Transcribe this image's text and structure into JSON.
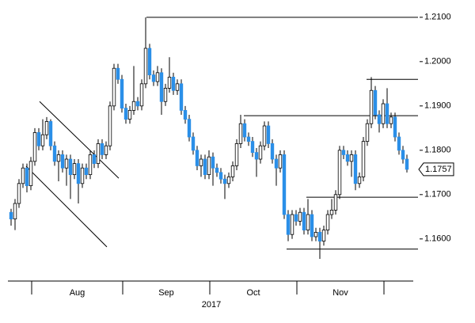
{
  "chart_data": {
    "type": "candlestick",
    "open": [
      1.166,
      1.1645,
      1.168,
      1.1725,
      1.176,
      1.172,
      1.1775,
      1.184,
      1.181,
      1.1835,
      1.1865,
      1.181,
      1.1775,
      1.179,
      1.176,
      1.178,
      1.1745,
      1.177,
      1.1725,
      1.176,
      1.1745,
      1.179,
      1.177,
      1.1815,
      1.179,
      1.181,
      1.19,
      1.1985,
      1.196,
      1.1895,
      1.187,
      1.189,
      1.191,
      1.19,
      1.195,
      1.203,
      1.197,
      1.1955,
      1.1975,
      1.191,
      1.194,
      1.1965,
      1.1935,
      1.195,
      1.189,
      1.187,
      1.183,
      1.18,
      1.1765,
      1.178,
      1.1745,
      1.1785,
      1.176,
      1.175,
      1.1735,
      1.1725,
      1.174,
      1.1765,
      1.1815,
      1.186,
      1.183,
      1.182,
      1.1795,
      1.178,
      1.181,
      1.1855,
      1.1815,
      1.178,
      1.176,
      1.179,
      1.1655,
      1.161,
      1.1655,
      1.164,
      1.166,
      1.162,
      1.1655,
      1.1605,
      1.1615,
      1.1595,
      1.162,
      1.1655,
      1.1665,
      1.17,
      1.18,
      1.179,
      1.1775,
      1.179,
      1.1725,
      1.174,
      1.182,
      1.186,
      1.1935,
      1.188,
      1.186,
      1.1905,
      1.186,
      1.1875,
      1.183,
      1.18,
      1.178
    ],
    "high": [
      1.1668,
      1.169,
      1.1735,
      1.177,
      1.177,
      1.1785,
      1.185,
      1.185,
      1.187,
      1.1875,
      1.187,
      1.182,
      1.18,
      1.18,
      1.179,
      1.179,
      1.178,
      1.178,
      1.177,
      1.177,
      1.18,
      1.18,
      1.1825,
      1.1825,
      1.182,
      1.191,
      1.1995,
      1.1995,
      1.197,
      1.1905,
      1.19,
      1.199,
      1.192,
      1.196,
      1.21,
      1.204,
      1.198,
      1.199,
      1.1985,
      1.195,
      1.201,
      1.1975,
      1.196,
      1.196,
      1.19,
      1.188,
      1.184,
      1.181,
      1.179,
      1.179,
      1.18,
      1.1795,
      1.177,
      1.176,
      1.1745,
      1.175,
      1.1775,
      1.1825,
      1.188,
      1.187,
      1.184,
      1.183,
      1.1805,
      1.182,
      1.1865,
      1.1865,
      1.1825,
      1.179,
      1.18,
      1.18,
      1.1665,
      1.1665,
      1.1665,
      1.167,
      1.167,
      1.169,
      1.1665,
      1.1625,
      1.1625,
      1.163,
      1.1665,
      1.169,
      1.171,
      1.181,
      1.181,
      1.18,
      1.18,
      1.18,
      1.175,
      1.183,
      1.187,
      1.1965,
      1.1945,
      1.189,
      1.1915,
      1.194,
      1.1885,
      1.1885,
      1.184,
      1.181,
      1.179
    ],
    "low": [
      1.163,
      1.162,
      1.167,
      1.1715,
      1.1705,
      1.171,
      1.1765,
      1.18,
      1.18,
      1.1825,
      1.18,
      1.1765,
      1.173,
      1.175,
      1.172,
      1.169,
      1.1735,
      1.168,
      1.1715,
      1.1735,
      1.1735,
      1.176,
      1.176,
      1.178,
      1.178,
      1.18,
      1.189,
      1.195,
      1.1885,
      1.186,
      1.186,
      1.188,
      1.189,
      1.189,
      1.194,
      1.196,
      1.1945,
      1.1945,
      1.188,
      1.19,
      1.193,
      1.1925,
      1.1925,
      1.188,
      1.186,
      1.182,
      1.179,
      1.1755,
      1.174,
      1.1735,
      1.1735,
      1.172,
      1.174,
      1.1725,
      1.169,
      1.1715,
      1.173,
      1.1755,
      1.1805,
      1.182,
      1.181,
      1.1785,
      1.174,
      1.177,
      1.18,
      1.1805,
      1.177,
      1.172,
      1.175,
      1.1645,
      1.1595,
      1.16,
      1.163,
      1.163,
      1.161,
      1.161,
      1.1595,
      1.1595,
      1.1555,
      1.1585,
      1.161,
      1.1645,
      1.1655,
      1.169,
      1.178,
      1.1765,
      1.174,
      1.171,
      1.1715,
      1.173,
      1.181,
      1.185,
      1.187,
      1.184,
      1.185,
      1.185,
      1.185,
      1.182,
      1.179,
      1.177,
      1.175
    ],
    "close": [
      1.1645,
      1.168,
      1.1725,
      1.176,
      1.172,
      1.1775,
      1.184,
      1.181,
      1.1835,
      1.1865,
      1.181,
      1.1775,
      1.179,
      1.176,
      1.178,
      1.1745,
      1.177,
      1.1725,
      1.176,
      1.1745,
      1.179,
      1.177,
      1.1815,
      1.179,
      1.181,
      1.19,
      1.1985,
      1.196,
      1.1895,
      1.187,
      1.189,
      1.191,
      1.19,
      1.195,
      1.203,
      1.197,
      1.1955,
      1.1975,
      1.191,
      1.194,
      1.1965,
      1.1935,
      1.195,
      1.189,
      1.187,
      1.183,
      1.18,
      1.1765,
      1.178,
      1.1745,
      1.1785,
      1.176,
      1.175,
      1.1735,
      1.1725,
      1.174,
      1.1765,
      1.1815,
      1.186,
      1.183,
      1.182,
      1.1795,
      1.178,
      1.181,
      1.1855,
      1.1815,
      1.178,
      1.176,
      1.179,
      1.1655,
      1.161,
      1.1655,
      1.164,
      1.166,
      1.162,
      1.1655,
      1.1605,
      1.1615,
      1.1595,
      1.162,
      1.1655,
      1.1665,
      1.17,
      1.18,
      1.179,
      1.1775,
      1.179,
      1.1725,
      1.174,
      1.182,
      1.186,
      1.1935,
      1.188,
      1.186,
      1.1905,
      1.186,
      1.1875,
      1.183,
      1.18,
      1.178,
      1.1757
    ],
    "up_color": "#ffffff",
    "down_color": "#2b8fe8",
    "xlim": [
      -1,
      103
    ],
    "ylim": [
      1.1505,
      1.2139
    ],
    "yticks": [
      {
        "value": 1.16,
        "label": "1.1600"
      },
      {
        "value": 1.17,
        "label": "1.1700"
      },
      {
        "value": 1.18,
        "label": "1.1800"
      },
      {
        "value": 1.19,
        "label": "1.1900"
      },
      {
        "value": 1.2,
        "label": "1.2000"
      },
      {
        "value": 1.21,
        "label": "1.2100"
      }
    ],
    "xticks": [
      5.2,
      28.2,
      50.2,
      72.2,
      94.2
    ],
    "month_labels": [
      "Aug",
      "Sep",
      "Oct",
      "Nov"
    ],
    "year_label": "2017",
    "lines": [
      {
        "x": [
          7.2,
          27.2
        ],
        "y": [
          1.191,
          1.1737
        ]
      },
      {
        "x": [
          3.8,
          24.2
        ],
        "y": [
          1.1764,
          1.1582
        ]
      },
      {
        "x": [
          34.2,
          102.8
        ],
        "y": [
          1.21,
          1.21
        ]
      },
      {
        "x": [
          58.8,
          102.8
        ],
        "y": [
          1.1878,
          1.1878
        ]
      },
      {
        "x": [
          89.8,
          102.8
        ],
        "y": [
          1.196,
          1.196
        ]
      },
      {
        "x": [
          74.6,
          102.8
        ],
        "y": [
          1.1694,
          1.1694
        ]
      },
      {
        "x": [
          69.6,
          102.8
        ],
        "y": [
          1.1577,
          1.1577
        ]
      }
    ]
  }
}
